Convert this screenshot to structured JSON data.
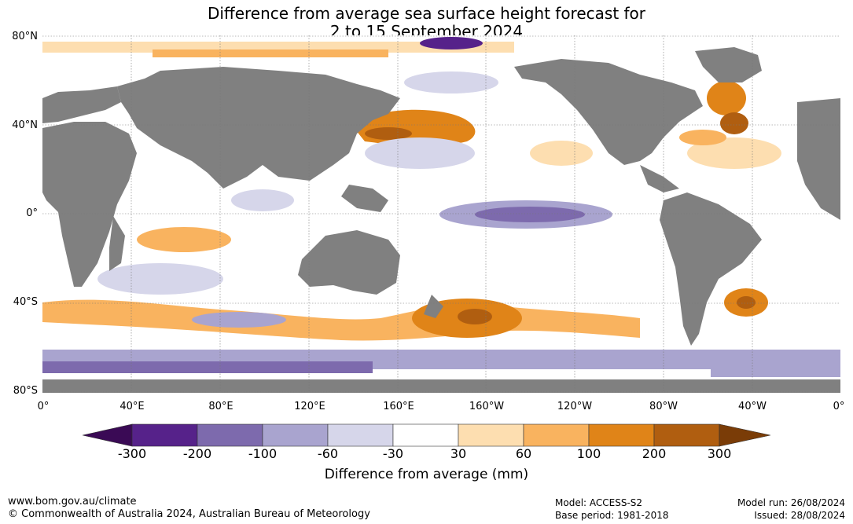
{
  "title_line1": "Difference from average sea surface height forecast for",
  "title_line2": "2 to 15 September 2024",
  "lat_labels": [
    "80°N",
    "40°N",
    "0°",
    "40°S",
    "80°S"
  ],
  "lon_labels": [
    "0°",
    "40°E",
    "80°E",
    "120°E",
    "160°E",
    "160°W",
    "120°W",
    "80°W",
    "40°W",
    "0°"
  ],
  "colorbar": {
    "levels": [
      "-300",
      "-200",
      "-100",
      "-60",
      "-30",
      "30",
      "60",
      "100",
      "200",
      "300"
    ],
    "colors": [
      "#3a0a55",
      "#56228a",
      "#7d6aad",
      "#a9a4cf",
      "#d6d6ea",
      "#ffffff",
      "#fddeb0",
      "#f9b35f",
      "#e08418",
      "#b05e10",
      "#7a3c07"
    ],
    "title": "Difference from average (mm)"
  },
  "map_colors": {
    "land": "#808080",
    "ocean_neutral": "#ffffff"
  },
  "footer": {
    "website": "www.bom.gov.au/climate",
    "copyright": "© Commonwealth of Australia 2024, Australian Bureau of Meteorology",
    "model": "Model: ACCESS-S2",
    "base_period": "Base period: 1981-2018",
    "model_run": "Model run: 26/08/2024",
    "issued": "Issued: 28/08/2024"
  }
}
